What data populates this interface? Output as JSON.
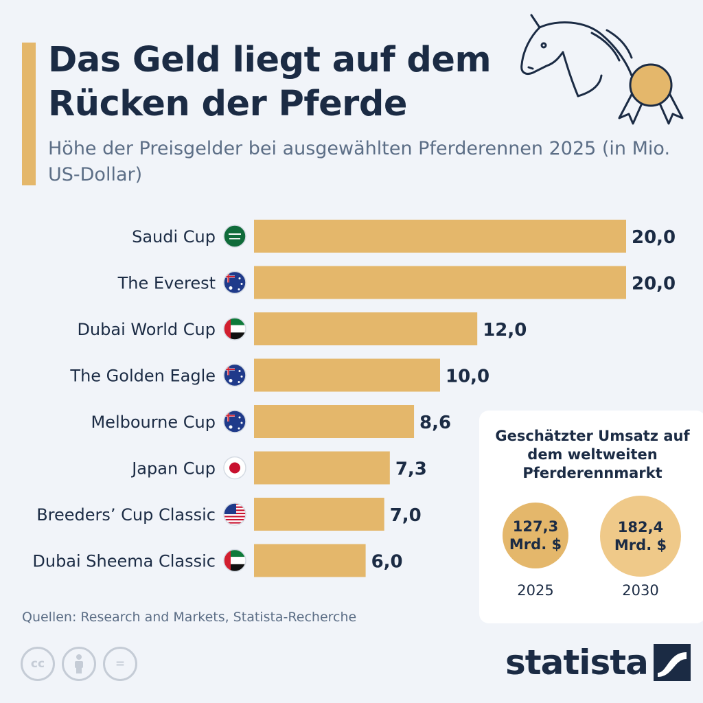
{
  "header": {
    "title": "Das Geld liegt auf dem Rücken der Pferde",
    "subtitle": "Höhe der Preisgelder bei ausgewählten Pferderennen 2025 (in Mio. US-Dollar)"
  },
  "colors": {
    "bar": "#e4b76b",
    "text": "#1b2b44",
    "background": "#f1f4f9"
  },
  "chart_data": {
    "type": "bar",
    "orientation": "horizontal",
    "title": "Das Geld liegt auf dem Rücken der Pferde",
    "subtitle": "Höhe der Preisgelder bei ausgewählten Pferderennen 2025 (in Mio. US-Dollar)",
    "categories": [
      "Saudi Cup",
      "The Everest",
      "Dubai World Cup",
      "The Golden Eagle",
      "Melbourne Cup",
      "Japan Cup",
      "Breeders’ Cup Classic",
      "Dubai Sheema Classic"
    ],
    "values": [
      20.0,
      20.0,
      12.0,
      10.0,
      8.6,
      7.3,
      7.0,
      6.0
    ],
    "value_labels": [
      "20,0",
      "20,0",
      "12,0",
      "10,0",
      "8,6",
      "7,3",
      "7,0",
      "6,0"
    ],
    "flags": [
      "saudi-arabia-flag-icon",
      "australia-flag-icon",
      "uae-flag-icon",
      "australia-flag-icon",
      "australia-flag-icon",
      "japan-flag-icon",
      "usa-flag-icon",
      "uae-flag-icon"
    ],
    "xlim": [
      0,
      20
    ],
    "grid": false,
    "legend": "none"
  },
  "side_box": {
    "title": "Geschätzter Umsatz auf dem weltweiten Pferderennmarkt",
    "items": [
      {
        "value": "127,3",
        "unit": "Mrd. $",
        "year": "2025"
      },
      {
        "value": "182,4",
        "unit": "Mrd. $",
        "year": "2030"
      }
    ]
  },
  "footer": {
    "source": "Quellen: Research and Markets, Statista-Recherche",
    "brand": "statista",
    "license_icons": [
      "cc-icon",
      "attribution-icon",
      "no-derivatives-icon"
    ],
    "license_labels": [
      "cc",
      "",
      "="
    ]
  }
}
